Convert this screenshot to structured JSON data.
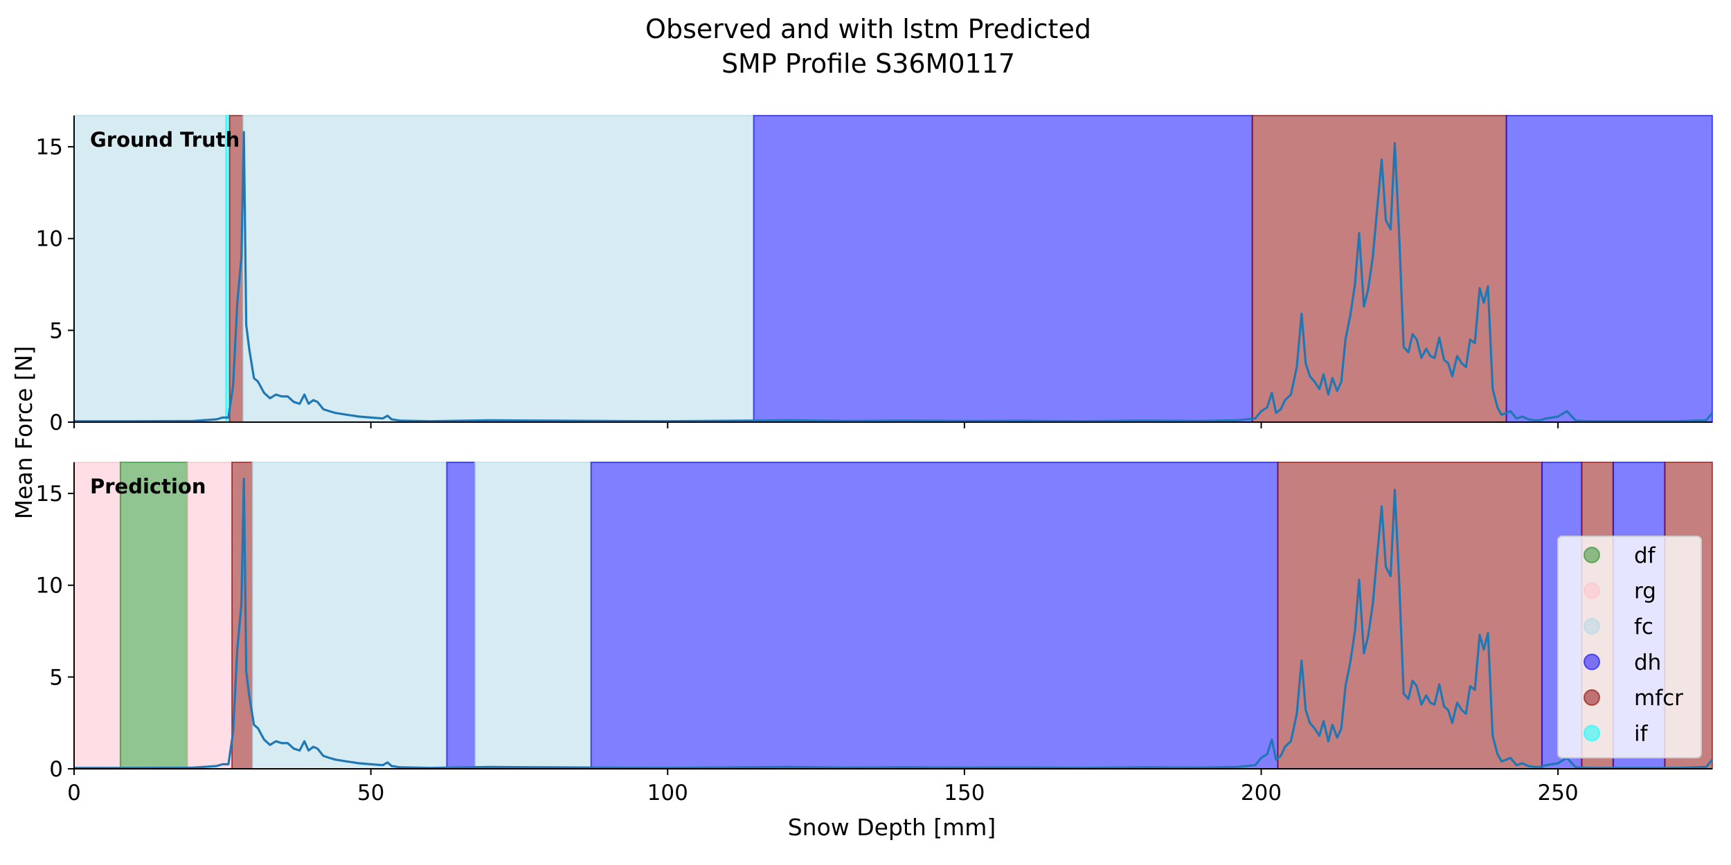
{
  "chart_data": {
    "type": "line",
    "title": "Observed and with lstm Predicted",
    "subtitle": "SMP Profile S36M0117",
    "xlabel": "Snow Depth [mm]",
    "ylabel": "Mean Force [N]",
    "xlim": [
      0,
      276
    ],
    "ylim": [
      0,
      16.7
    ],
    "x_ticks": [
      0,
      50,
      100,
      150,
      200,
      250
    ],
    "y_ticks": [
      0,
      5,
      10,
      15
    ],
    "grid": false,
    "legend_position": "right",
    "classes": [
      {
        "name": "df",
        "color": "#228b22"
      },
      {
        "name": "rg",
        "color": "#ffc0cb"
      },
      {
        "name": "fc",
        "color": "#add8e6"
      },
      {
        "name": "dh",
        "color": "#0000ff"
      },
      {
        "name": "mfcr",
        "color": "#8b0000"
      },
      {
        "name": "if",
        "color": "#00ffff"
      }
    ],
    "panels": [
      {
        "label": "Ground Truth",
        "segments": [
          {
            "cls": "fc",
            "start": 0,
            "end": 25.6
          },
          {
            "cls": "if",
            "start": 25.6,
            "end": 26.2
          },
          {
            "cls": "mfcr",
            "start": 26.2,
            "end": 28.4
          },
          {
            "cls": "fc",
            "start": 28.4,
            "end": 114.5
          },
          {
            "cls": "dh",
            "start": 114.5,
            "end": 198.5
          },
          {
            "cls": "mfcr",
            "start": 198.5,
            "end": 241.3
          },
          {
            "cls": "dh",
            "start": 241.3,
            "end": 276
          }
        ]
      },
      {
        "label": "Prediction",
        "segments": [
          {
            "cls": "rg",
            "start": 0,
            "end": 7.8
          },
          {
            "cls": "df",
            "start": 7.8,
            "end": 19.1
          },
          {
            "cls": "rg",
            "start": 19.1,
            "end": 26.6
          },
          {
            "cls": "mfcr",
            "start": 26.6,
            "end": 30.0
          },
          {
            "cls": "fc",
            "start": 30.0,
            "end": 62.8
          },
          {
            "cls": "dh",
            "start": 62.8,
            "end": 67.5
          },
          {
            "cls": "fc",
            "start": 67.5,
            "end": 87.1
          },
          {
            "cls": "dh",
            "start": 87.1,
            "end": 202.8
          },
          {
            "cls": "mfcr",
            "start": 202.8,
            "end": 247.3
          },
          {
            "cls": "dh",
            "start": 247.3,
            "end": 254.0
          },
          {
            "cls": "mfcr",
            "start": 254.0,
            "end": 259.3
          },
          {
            "cls": "dh",
            "start": 259.3,
            "end": 268.0
          },
          {
            "cls": "mfcr",
            "start": 268.0,
            "end": 276
          }
        ]
      }
    ],
    "series": [
      {
        "color": "#1f77b4",
        "x": [
          0,
          10,
          20,
          24,
          25,
          26,
          26.8,
          27.5,
          28.2,
          28.6,
          29.0,
          29.5,
          30.3,
          31.0,
          32.0,
          33.0,
          34.0,
          35.0,
          36.0,
          37.0,
          38.0,
          38.8,
          39.5,
          40.3,
          41.0,
          42.0,
          43.0,
          44.0,
          46.0,
          48.0,
          50.0,
          52.0,
          52.8,
          53.5,
          55.0,
          60.0,
          70.0,
          80.0,
          90.0,
          100.0,
          110.0,
          120.0,
          130.0,
          140.0,
          150.0,
          160.0,
          170.0,
          180.0,
          190.0,
          196.0,
          199.0,
          200.0,
          201.0,
          201.8,
          202.5,
          203.3,
          204.0,
          205.0,
          206.0,
          206.8,
          207.5,
          208.2,
          209.0,
          209.8,
          210.5,
          211.3,
          212.0,
          212.8,
          213.5,
          214.2,
          215.0,
          215.8,
          216.5,
          217.3,
          218.0,
          218.8,
          219.5,
          220.3,
          221.0,
          221.8,
          222.5,
          223.2,
          224.0,
          224.8,
          225.5,
          226.2,
          227.0,
          227.8,
          228.5,
          229.2,
          230.0,
          230.8,
          231.5,
          232.2,
          233.0,
          233.8,
          234.5,
          235.2,
          236.0,
          236.8,
          237.5,
          238.2,
          239.0,
          239.8,
          240.5,
          241.3,
          242.0,
          243.0,
          244.0,
          245.0,
          246.0,
          247.0,
          248.0,
          250.0,
          251.5,
          253.0,
          255.0,
          260.0,
          270.0,
          275.0,
          276.0
        ],
        "y": [
          0.05,
          0.05,
          0.06,
          0.15,
          0.25,
          0.25,
          2.0,
          6.5,
          9.0,
          15.8,
          5.3,
          4.0,
          2.4,
          2.2,
          1.6,
          1.3,
          1.5,
          1.4,
          1.4,
          1.1,
          1.0,
          1.5,
          1.0,
          1.2,
          1.1,
          0.7,
          0.6,
          0.5,
          0.4,
          0.3,
          0.25,
          0.2,
          0.35,
          0.15,
          0.08,
          0.05,
          0.1,
          0.08,
          0.06,
          0.05,
          0.07,
          0.1,
          0.06,
          0.08,
          0.06,
          0.07,
          0.05,
          0.08,
          0.06,
          0.1,
          0.2,
          0.6,
          0.8,
          1.6,
          0.5,
          0.7,
          1.2,
          1.5,
          3.0,
          5.9,
          3.2,
          2.5,
          2.2,
          1.8,
          2.6,
          1.5,
          2.4,
          1.7,
          2.2,
          4.5,
          5.8,
          7.5,
          10.3,
          6.3,
          7.2,
          9.0,
          11.5,
          14.3,
          11.0,
          10.5,
          15.2,
          10.5,
          4.1,
          3.8,
          4.8,
          4.5,
          3.5,
          4.0,
          3.6,
          3.5,
          4.6,
          3.4,
          3.2,
          2.5,
          3.6,
          3.2,
          3.0,
          4.5,
          4.3,
          7.3,
          6.5,
          7.4,
          1.8,
          0.8,
          0.4,
          0.5,
          0.6,
          0.2,
          0.3,
          0.15,
          0.1,
          0.1,
          0.2,
          0.3,
          0.6,
          0.08,
          0.05,
          0.05,
          0.05,
          0.1,
          0.5
        ]
      }
    ]
  }
}
